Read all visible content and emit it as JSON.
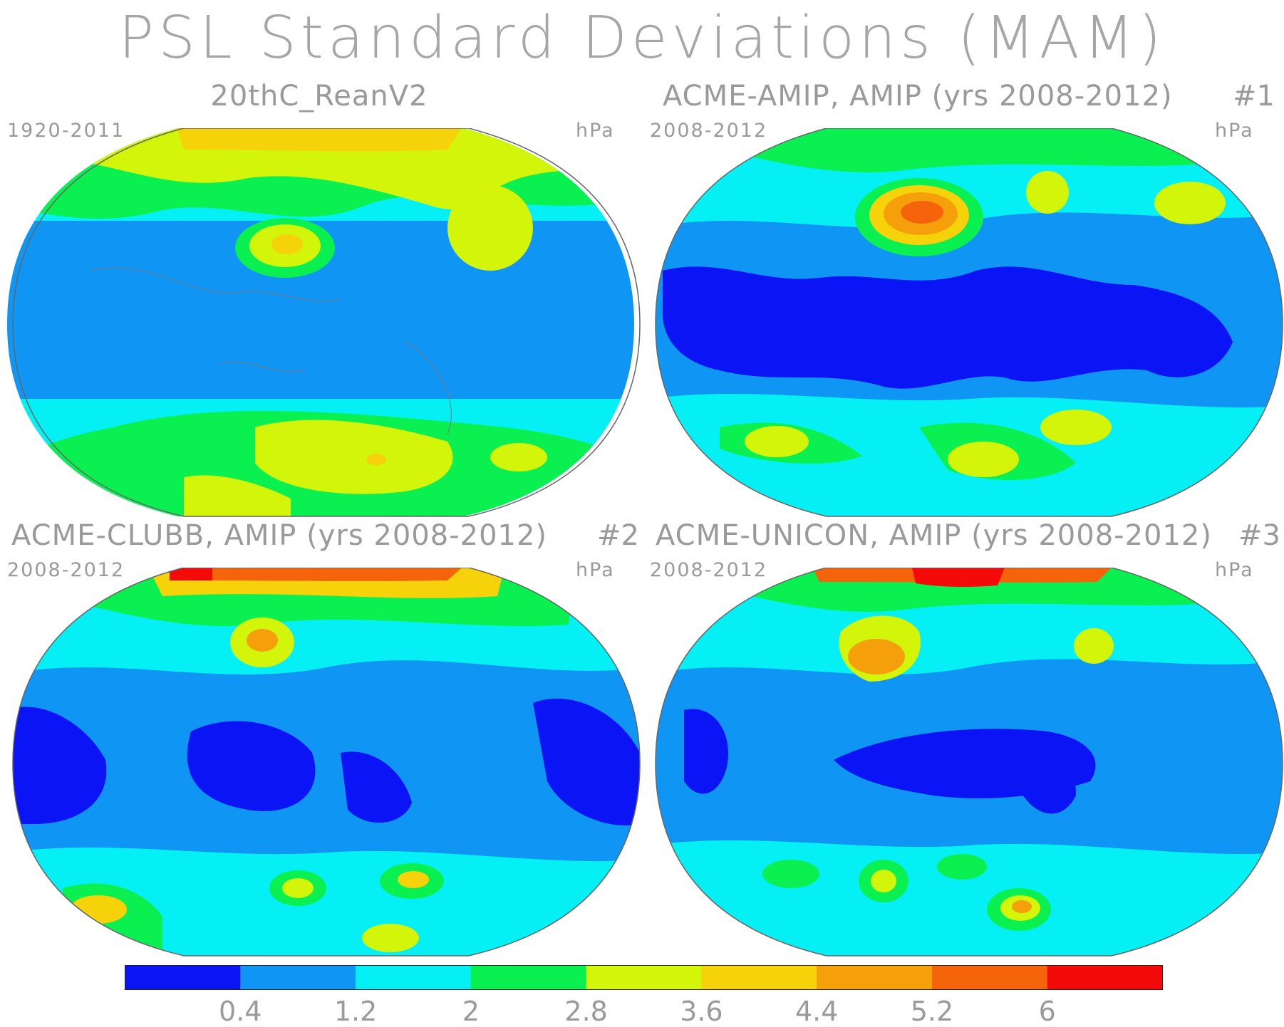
{
  "title": "PSL Standard Deviations (MAM)",
  "panels": [
    {
      "title": "20thC_ReanV2",
      "number": "",
      "years": "1920-2011",
      "units": "hPa"
    },
    {
      "title": "ACME-AMIP, AMIP (yrs 2008-2012)",
      "number": "#1",
      "years": "2008-2012",
      "units": "hPa"
    },
    {
      "title": "ACME-CLUBB, AMIP (yrs 2008-2012)",
      "number": "#2",
      "years": "2008-2012",
      "units": "hPa"
    },
    {
      "title": "ACME-UNICON, AMIP (yrs 2008-2012)",
      "number": "#3",
      "years": "2008-2012",
      "units": "hPa"
    }
  ],
  "colorbar": {
    "colors": [
      "#0a14f5",
      "#0f96f5",
      "#05f0f5",
      "#0af050",
      "#d2f50a",
      "#f5d20a",
      "#f5a00a",
      "#f5640a",
      "#f50a0a"
    ],
    "labels": [
      "0.4",
      "1.2",
      "2",
      "2.8",
      "3.6",
      "4.4",
      "5.2",
      "6"
    ]
  }
}
